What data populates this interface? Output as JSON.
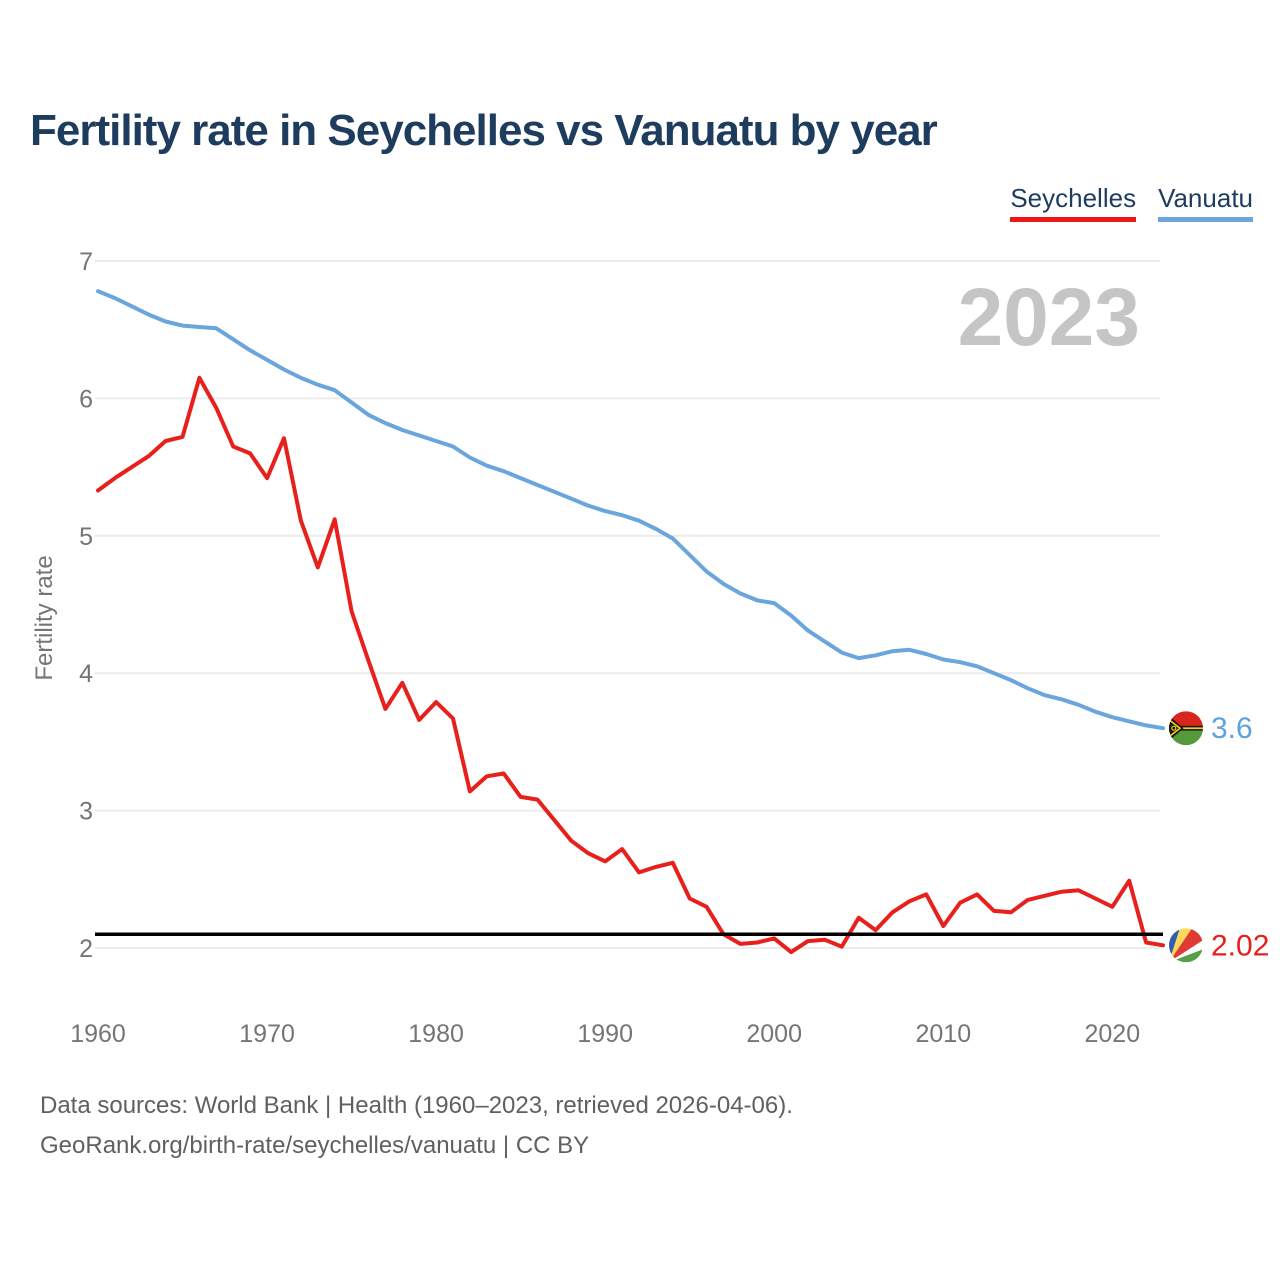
{
  "header": {
    "title": "Fertility rate in Seychelles vs Vanuatu by year",
    "title_color": "#1d3c5e"
  },
  "legend": [
    {
      "label": "Seychelles",
      "color": "#ee1713"
    },
    {
      "label": "Vanuatu",
      "color": "#6ba7de"
    }
  ],
  "watermark": "2023",
  "chart_data": {
    "type": "line",
    "title": "Fertility rate in Seychelles vs Vanuatu by year",
    "xlabel": "",
    "ylabel": "Fertility rate",
    "ylim": [
      2,
      7
    ],
    "yticks": [
      7,
      6,
      5,
      4,
      3,
      2
    ],
    "xticks": [
      1960,
      1970,
      1980,
      1990,
      2000,
      2010,
      2020
    ],
    "x_start": 1960,
    "x_end": 2023,
    "grid": "horizontal",
    "grid_color": "#ececec",
    "tick_color": "#757575",
    "watermark_color": "#c5c5c5",
    "legend_position": "top-right",
    "reference_line": {
      "value": 2.1,
      "color": "#000000"
    },
    "series": [
      {
        "name": "Vanuatu",
        "color": "#6aa5dd",
        "end_label": "3.6",
        "end_label_color": "#5ba2e0",
        "values": [
          6.78,
          6.73,
          6.67,
          6.61,
          6.56,
          6.53,
          6.52,
          6.51,
          6.43,
          6.35,
          6.28,
          6.21,
          6.15,
          6.1,
          6.06,
          5.97,
          5.88,
          5.82,
          5.77,
          5.73,
          5.69,
          5.65,
          5.57,
          5.51,
          5.47,
          5.42,
          5.37,
          5.32,
          5.27,
          5.22,
          5.18,
          5.15,
          5.11,
          5.05,
          4.98,
          4.86,
          4.74,
          4.65,
          4.58,
          4.53,
          4.51,
          4.42,
          4.31,
          4.23,
          4.15,
          4.11,
          4.13,
          4.16,
          4.17,
          4.14,
          4.1,
          4.08,
          4.05,
          4.0,
          3.95,
          3.89,
          3.84,
          3.81,
          3.77,
          3.72,
          3.68,
          3.65,
          3.62,
          3.6
        ]
      },
      {
        "name": "Seychelles",
        "color": "#e8201c",
        "end_label": "2.02",
        "end_label_color": "#e8201c",
        "values": [
          5.33,
          5.42,
          5.5,
          5.58,
          5.69,
          5.72,
          6.15,
          5.93,
          5.65,
          5.6,
          5.42,
          5.71,
          5.11,
          4.77,
          5.12,
          4.45,
          4.09,
          3.74,
          3.93,
          3.66,
          3.79,
          3.67,
          3.14,
          3.25,
          3.27,
          3.1,
          3.08,
          2.93,
          2.78,
          2.69,
          2.63,
          2.72,
          2.55,
          2.59,
          2.62,
          2.36,
          2.3,
          2.1,
          2.03,
          2.04,
          2.07,
          1.97,
          2.05,
          2.06,
          2.01,
          2.22,
          2.13,
          2.26,
          2.34,
          2.39,
          2.16,
          2.33,
          2.39,
          2.27,
          2.26,
          2.35,
          2.38,
          2.41,
          2.42,
          2.36,
          2.3,
          2.49,
          2.04,
          2.02
        ]
      }
    ]
  },
  "footer": {
    "line1": "Data sources: World Bank | Health (1960–2023, retrieved 2026-04-06).",
    "line2": "GeoRank.org/birth-rate/seychelles/vanuatu | CC BY"
  }
}
